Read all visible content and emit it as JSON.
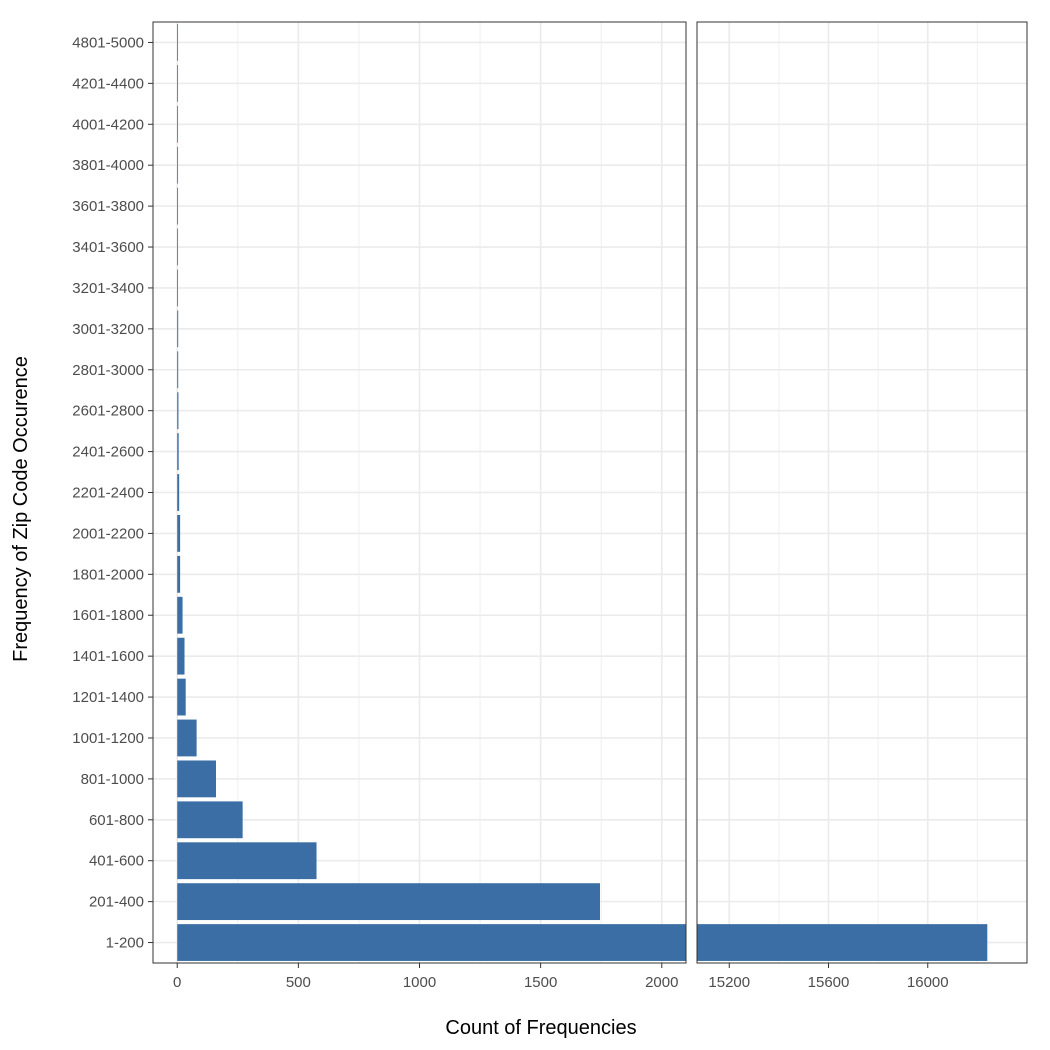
{
  "chart_data": {
    "type": "bar",
    "orientation": "horizontal",
    "xlabel": "Count of Frequencies",
    "ylabel": "Frequency of Zip Code Occurence",
    "grid": true,
    "bar_color": "#3a6ea5",
    "categories": [
      "1-200",
      "201-400",
      "401-600",
      "601-800",
      "801-1000",
      "1001-1200",
      "1201-1400",
      "1401-1600",
      "1601-1800",
      "1801-2000",
      "2001-2200",
      "2201-2400",
      "2401-2600",
      "2601-2800",
      "2801-3000",
      "3001-3200",
      "3201-3400",
      "3401-3600",
      "3601-3800",
      "3801-4000",
      "4001-4200",
      "4201-4400",
      "4801-5000"
    ],
    "values": [
      16240,
      1745,
      575,
      270,
      160,
      80,
      35,
      30,
      22,
      12,
      12,
      8,
      6,
      5,
      4,
      4,
      3,
      3,
      2,
      2,
      2,
      2,
      1
    ],
    "panels": [
      {
        "xlim": [
          -100,
          2100
        ],
        "ticks": [
          0,
          500,
          1000,
          1500,
          2000
        ],
        "tick_labels": [
          "0",
          "500",
          "1000",
          "1500",
          "2000"
        ]
      },
      {
        "xlim": [
          15070,
          16400
        ],
        "ticks": [
          15200,
          15600,
          16000
        ],
        "tick_labels": [
          "15200",
          "15600",
          "16000"
        ]
      }
    ]
  }
}
